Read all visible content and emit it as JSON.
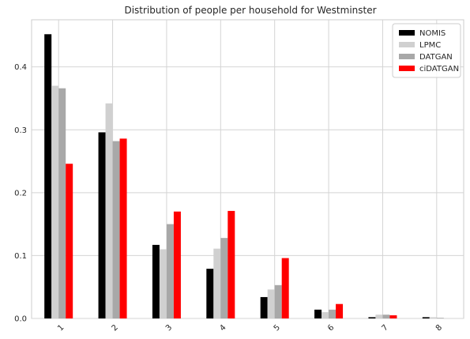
{
  "chart_data": {
    "type": "bar",
    "title": "Distribution of people per household for Westminster",
    "xlabel": "",
    "ylabel": "",
    "categories": [
      "1",
      "2",
      "3",
      "4",
      "5",
      "6",
      "7",
      "8"
    ],
    "ylim": [
      0,
      0.475
    ],
    "yticks": [
      "0.0",
      "0.1",
      "0.2",
      "0.3",
      "0.4"
    ],
    "grid": true,
    "legend_position": "top-right",
    "series": [
      {
        "name": "NOMIS",
        "color": "#000000",
        "values": [
          0.452,
          0.296,
          0.117,
          0.079,
          0.034,
          0.014,
          0.002,
          0.002
        ]
      },
      {
        "name": "LPMC",
        "color": "#d0d0d0",
        "values": [
          0.37,
          0.342,
          0.11,
          0.111,
          0.046,
          0.01,
          0.006,
          0.002
        ]
      },
      {
        "name": "DATGAN",
        "color": "#a8a8a8",
        "values": [
          0.366,
          0.282,
          0.15,
          0.128,
          0.053,
          0.014,
          0.006,
          0.001
        ]
      },
      {
        "name": "ciDATGAN",
        "color": "#ff0000",
        "values": [
          0.246,
          0.286,
          0.17,
          0.171,
          0.096,
          0.023,
          0.005,
          0.0
        ]
      }
    ]
  }
}
